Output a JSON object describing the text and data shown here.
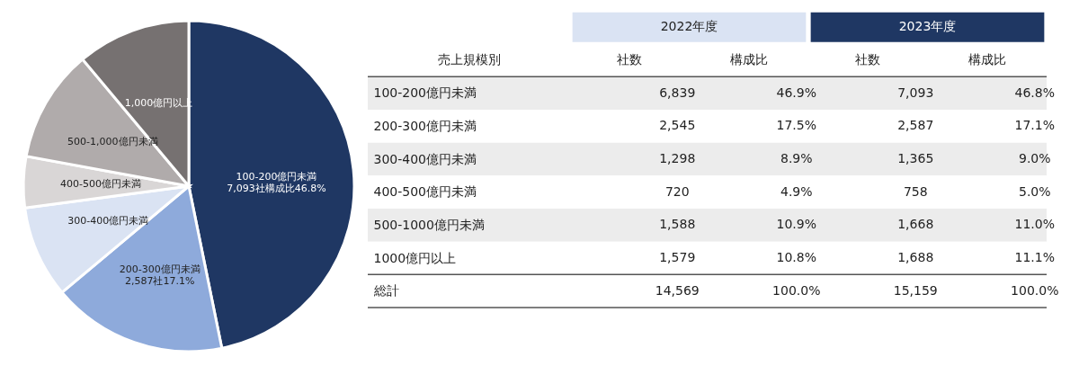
{
  "chart_data": [
    {
      "type": "pie",
      "categories": [
        "100-200億円未満",
        "200-300億円未満",
        "300-400億円未満",
        "400-500億円未満",
        "500-1,000億円未満",
        "1,000億円以上"
      ],
      "values": [
        46.8,
        17.1,
        9.0,
        5.0,
        11.0,
        11.1
      ],
      "value_labels": [
        "7,093社構成比46.8%",
        "2,587社17.1%",
        null,
        null,
        null,
        null
      ],
      "colors": [
        "#1f3763",
        "#8eaadb",
        "#dae3f3",
        "#d9d6d6",
        "#b0abab",
        "#767171"
      ],
      "legend": false
    },
    {
      "type": "heatmap",
      "ylabel": "売上規模別",
      "annotations": [
        "2022年度",
        "2023年度"
      ],
      "categories": [
        "社数",
        "構成比",
        "社数",
        "構成比"
      ],
      "y_categories": [
        "100-200億円未満",
        "200-300億円未満",
        "300-400億円未満",
        "400-500億円未満",
        "500-1000億円未満",
        "1000億円以上",
        "総計"
      ],
      "cells": [
        [
          6839,
          46.9,
          7093,
          46.8
        ],
        [
          2545,
          17.5,
          2587,
          17.1
        ],
        [
          1298,
          8.9,
          1365,
          9.0
        ],
        [
          720,
          4.9,
          758,
          5.0
        ],
        [
          1588,
          10.9,
          1668,
          11.0
        ],
        [
          1579,
          10.8,
          1688,
          11.1
        ],
        [
          14569,
          100.0,
          15159,
          100.0
        ]
      ],
      "cell_labels": [
        [
          "6,839",
          "46.9%",
          "7,093",
          "46.8%"
        ],
        [
          "2,545",
          "17.5%",
          "2,587",
          "17.1%"
        ],
        [
          "1,298",
          "8.9%",
          "1,365",
          "9.0%"
        ],
        [
          "720",
          "4.9%",
          "758",
          "5.0%"
        ],
        [
          "1,588",
          "10.9%",
          "1,668",
          "11.0%"
        ],
        [
          "1,579",
          "10.8%",
          "1,688",
          "11.1%"
        ],
        [
          "14,569",
          "100.0%",
          "15,159",
          "100.0%"
        ]
      ]
    }
  ]
}
